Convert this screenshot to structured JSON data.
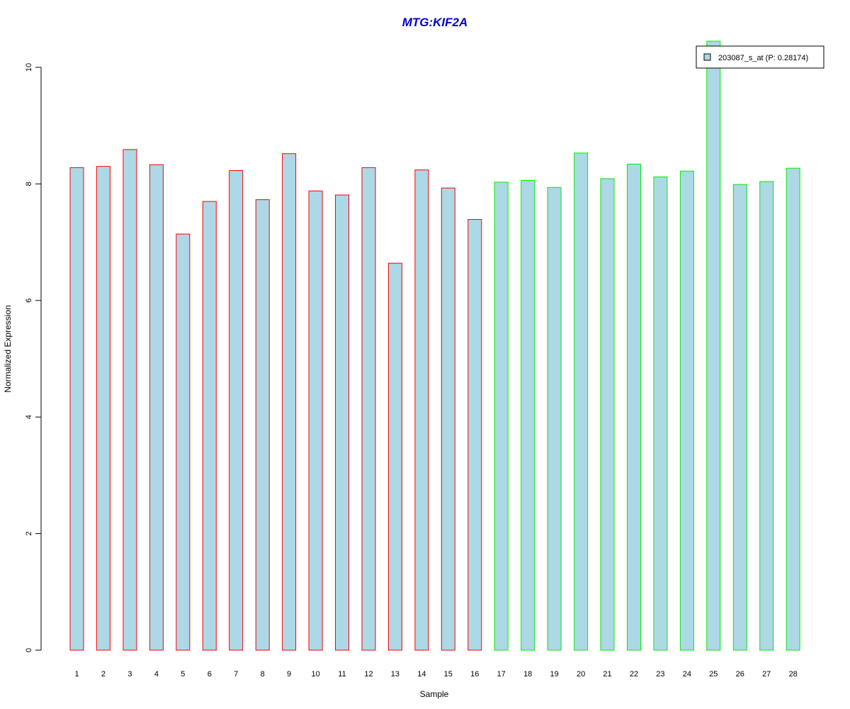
{
  "chart_data": {
    "type": "bar",
    "title": "MTG:KIF2A",
    "xlabel": "Sample",
    "ylabel": "Normalized Expression",
    "ylim": [
      0,
      10.5
    ],
    "yticks": [
      0,
      2,
      4,
      6,
      8,
      10
    ],
    "categories": [
      "1",
      "2",
      "3",
      "4",
      "5",
      "6",
      "7",
      "8",
      "9",
      "10",
      "11",
      "12",
      "13",
      "14",
      "15",
      "16",
      "17",
      "18",
      "19",
      "20",
      "21",
      "22",
      "23",
      "24",
      "25",
      "26",
      "27",
      "28"
    ],
    "series": [
      {
        "name": "203087_s_at (P: 0.28174)",
        "fill": "#ADD8E6",
        "values": [
          8.28,
          8.3,
          8.59,
          8.33,
          7.14,
          7.7,
          8.23,
          7.73,
          8.52,
          7.88,
          7.81,
          8.28,
          6.64,
          8.24,
          7.93,
          7.39,
          8.03,
          8.06,
          7.94,
          8.53,
          8.09,
          8.34,
          8.12,
          8.22,
          10.45,
          7.99,
          8.04,
          8.27
        ]
      }
    ],
    "group_borders": {
      "colors": [
        "#FF0000",
        "#00EE00"
      ],
      "assignment": [
        0,
        0,
        0,
        0,
        0,
        0,
        0,
        0,
        0,
        0,
        0,
        0,
        0,
        0,
        0,
        0,
        1,
        1,
        1,
        1,
        1,
        1,
        1,
        1,
        1,
        1,
        1,
        1
      ]
    },
    "legend": {
      "position": "top-right",
      "label": "203087_s_at (P: 0.28174)",
      "swatch_fill": "#ADD8E6"
    }
  }
}
